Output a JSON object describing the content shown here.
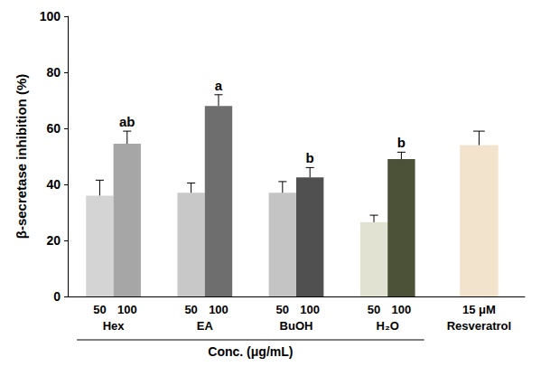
{
  "chart_data": {
    "type": "bar",
    "y_label": "β-secretase inhibition (%)",
    "x_label": "Conc. (μg/mL)",
    "categories": [
      "50",
      "100",
      "50",
      "100",
      "50",
      "100",
      "50",
      "100",
      "15 μM"
    ],
    "group_labels": [
      "Hex",
      "Hex",
      "EA",
      "EA",
      "BuOH",
      "BuOH",
      "H₂O",
      "H₂O",
      "Resveratrol"
    ],
    "values": [
      36,
      54.5,
      37,
      68,
      37,
      42.5,
      26.5,
      49,
      54
    ],
    "errors": [
      5.5,
      4.5,
      3.5,
      4,
      4,
      3.5,
      2.5,
      2.5,
      5
    ],
    "annotations": [
      null,
      "ab",
      null,
      "a",
      null,
      "b",
      null,
      "b",
      null
    ],
    "colors": [
      "#d4d4d4",
      "#a6a6a6",
      "#c8c8c8",
      "#6e6e6e",
      "#c4c4c4",
      "#505050",
      "#e2e2d2",
      "#4b5238",
      "#f2e3cc"
    ],
    "ylim": [
      0,
      100
    ],
    "yticks": [
      0,
      20,
      40,
      60,
      80,
      100
    ],
    "grid": false
  }
}
